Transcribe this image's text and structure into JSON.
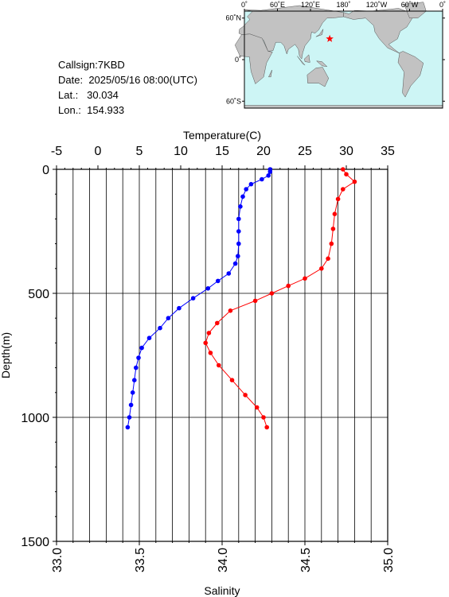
{
  "meta": {
    "callsign_label": "Callsign:",
    "callsign": "7KBD",
    "date_label": "Date:",
    "date": "2025/05/16 08:00(UTC)",
    "lat_label": "Lat.:",
    "lat": "30.034",
    "lon_label": "Lon.:",
    "lon": "154.933"
  },
  "map": {
    "top_ticks": [
      "0˚",
      "60˚E",
      "120˚E",
      "180˚",
      "120˚W",
      "60˚W",
      "0˚"
    ],
    "lat_ticks": [
      "60˚N",
      "0˚",
      "60˚S"
    ],
    "colors": {
      "ocean": "#cdf5f5",
      "land": "#c2c2c2",
      "marker": "#ff0000"
    }
  },
  "chart_data": {
    "type": "line",
    "temperature_axis": {
      "label": "Temperature(C)",
      "range": [
        -5,
        35
      ],
      "ticks": [
        "-5",
        "0",
        "5",
        "10",
        "15",
        "20",
        "25",
        "30",
        "35"
      ]
    },
    "salinity_axis": {
      "label": "Salinity",
      "range": [
        33.0,
        35.0
      ],
      "ticks": [
        "33.0",
        "33.5",
        "34.0",
        "34.5",
        "35.0"
      ]
    },
    "depth_axis": {
      "label": "Depth(m)",
      "range": [
        0,
        1500
      ],
      "inverted": true,
      "ticks": [
        "0",
        "500",
        "1000",
        "1500"
      ]
    },
    "grid": true,
    "series": [
      {
        "color": "#0000ff",
        "axis": "temperature",
        "points": [
          [
            20.8,
            0
          ],
          [
            20.8,
            10
          ],
          [
            20.6,
            25
          ],
          [
            19.8,
            40
          ],
          [
            18.5,
            60
          ],
          [
            17.9,
            80
          ],
          [
            17.5,
            110
          ],
          [
            17.2,
            150
          ],
          [
            17.0,
            200
          ],
          [
            17.0,
            250
          ],
          [
            17.0,
            300
          ],
          [
            16.9,
            350
          ],
          [
            16.6,
            380
          ],
          [
            15.8,
            420
          ],
          [
            14.5,
            450
          ],
          [
            13.3,
            480
          ],
          [
            11.5,
            520
          ],
          [
            9.8,
            560
          ],
          [
            8.5,
            600
          ],
          [
            7.5,
            640
          ],
          [
            6.2,
            680
          ],
          [
            5.3,
            720
          ],
          [
            4.9,
            760
          ],
          [
            4.6,
            800
          ],
          [
            4.4,
            850
          ],
          [
            4.2,
            900
          ],
          [
            4.0,
            950
          ],
          [
            3.8,
            1000
          ],
          [
            3.6,
            1040
          ]
        ]
      },
      {
        "color": "#ff0000",
        "axis": "salinity",
        "points": [
          [
            34.73,
            0
          ],
          [
            34.75,
            20
          ],
          [
            34.8,
            50
          ],
          [
            34.73,
            80
          ],
          [
            34.7,
            120
          ],
          [
            34.68,
            180
          ],
          [
            34.67,
            240
          ],
          [
            34.66,
            300
          ],
          [
            34.64,
            360
          ],
          [
            34.6,
            400
          ],
          [
            34.5,
            440
          ],
          [
            34.4,
            470
          ],
          [
            34.3,
            500
          ],
          [
            34.2,
            530
          ],
          [
            34.05,
            570
          ],
          [
            33.97,
            620
          ],
          [
            33.92,
            660
          ],
          [
            33.9,
            700
          ],
          [
            33.93,
            740
          ],
          [
            33.98,
            790
          ],
          [
            34.06,
            850
          ],
          [
            34.14,
            910
          ],
          [
            34.21,
            960
          ],
          [
            34.25,
            1000
          ],
          [
            34.27,
            1040
          ]
        ]
      }
    ]
  }
}
